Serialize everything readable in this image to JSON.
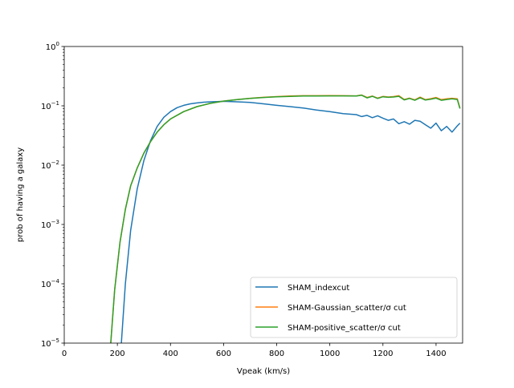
{
  "chart_data": {
    "type": "line",
    "title": "",
    "xlabel": "Vpeak (km/s)",
    "ylabel": "prob of having a galaxy",
    "xlim": [
      0,
      1500
    ],
    "ylim": [
      1e-05,
      1
    ],
    "yscale": "log",
    "x_ticks": [
      0,
      200,
      400,
      600,
      800,
      1000,
      1200,
      1400
    ],
    "y_ticks": [
      {
        "value": 1e-05,
        "base": "10",
        "exp": "−5"
      },
      {
        "value": 0.0001,
        "base": "10",
        "exp": "−4"
      },
      {
        "value": 0.001,
        "base": "10",
        "exp": "−3"
      },
      {
        "value": 0.01,
        "base": "10",
        "exp": "−2"
      },
      {
        "value": 0.1,
        "base": "10",
        "exp": "−1"
      },
      {
        "value": 1,
        "base": "10",
        "exp": "0"
      }
    ],
    "grid": false,
    "legend_position": "lower-right",
    "series": [
      {
        "name": "SHAM_indexcut",
        "color": "#1f77b4",
        "x": [
          215,
          230,
          250,
          275,
          300,
          325,
          350,
          375,
          400,
          425,
          450,
          475,
          500,
          525,
          550,
          575,
          600,
          650,
          700,
          750,
          800,
          850,
          900,
          950,
          1000,
          1050,
          1100,
          1120,
          1140,
          1160,
          1180,
          1200,
          1220,
          1240,
          1260,
          1280,
          1300,
          1320,
          1340,
          1360,
          1380,
          1400,
          1420,
          1440,
          1460,
          1480,
          1490
        ],
        "y": [
          1e-05,
          0.0001,
          0.0008,
          0.004,
          0.012,
          0.026,
          0.045,
          0.064,
          0.08,
          0.093,
          0.102,
          0.108,
          0.112,
          0.115,
          0.117,
          0.118,
          0.119,
          0.117,
          0.114,
          0.108,
          0.102,
          0.097,
          0.092,
          0.085,
          0.08,
          0.074,
          0.071,
          0.066,
          0.069,
          0.063,
          0.068,
          0.062,
          0.057,
          0.06,
          0.05,
          0.054,
          0.049,
          0.057,
          0.055,
          0.048,
          0.042,
          0.051,
          0.038,
          0.045,
          0.036,
          0.046,
          0.051
        ]
      },
      {
        "name": "SHAM-Gaussian_scatter/σ cut",
        "color": "#ff7f0e",
        "x": [
          175,
          190,
          210,
          230,
          250,
          275,
          300,
          325,
          350,
          375,
          400,
          450,
          500,
          550,
          600,
          650,
          700,
          750,
          800,
          850,
          900,
          950,
          1000,
          1050,
          1100,
          1120,
          1140,
          1160,
          1180,
          1200,
          1220,
          1240,
          1260,
          1280,
          1300,
          1320,
          1340,
          1360,
          1380,
          1400,
          1420,
          1440,
          1460,
          1480,
          1490
        ],
        "y": [
          1e-05,
          8e-05,
          0.0005,
          0.0018,
          0.0045,
          0.009,
          0.016,
          0.025,
          0.036,
          0.048,
          0.06,
          0.08,
          0.097,
          0.11,
          0.12,
          0.127,
          0.134,
          0.139,
          0.143,
          0.146,
          0.148,
          0.148,
          0.149,
          0.148,
          0.147,
          0.152,
          0.138,
          0.146,
          0.135,
          0.144,
          0.141,
          0.143,
          0.148,
          0.128,
          0.135,
          0.126,
          0.14,
          0.127,
          0.132,
          0.138,
          0.127,
          0.131,
          0.134,
          0.131,
          0.092
        ]
      },
      {
        "name": "SHAM-positive_scatter/σ cut",
        "color": "#2ca02c",
        "x": [
          175,
          190,
          210,
          230,
          250,
          275,
          300,
          325,
          350,
          375,
          400,
          450,
          500,
          550,
          600,
          650,
          700,
          750,
          800,
          850,
          900,
          950,
          1000,
          1050,
          1100,
          1120,
          1140,
          1160,
          1180,
          1200,
          1220,
          1240,
          1260,
          1280,
          1300,
          1320,
          1340,
          1360,
          1380,
          1400,
          1420,
          1440,
          1460,
          1480,
          1490
        ],
        "y": [
          1e-05,
          8e-05,
          0.0005,
          0.0018,
          0.0045,
          0.009,
          0.016,
          0.025,
          0.036,
          0.048,
          0.06,
          0.08,
          0.097,
          0.11,
          0.12,
          0.127,
          0.133,
          0.138,
          0.142,
          0.144,
          0.146,
          0.146,
          0.147,
          0.147,
          0.146,
          0.151,
          0.136,
          0.145,
          0.133,
          0.142,
          0.139,
          0.141,
          0.145,
          0.126,
          0.133,
          0.124,
          0.137,
          0.125,
          0.129,
          0.135,
          0.124,
          0.128,
          0.131,
          0.128,
          0.09
        ]
      }
    ]
  }
}
